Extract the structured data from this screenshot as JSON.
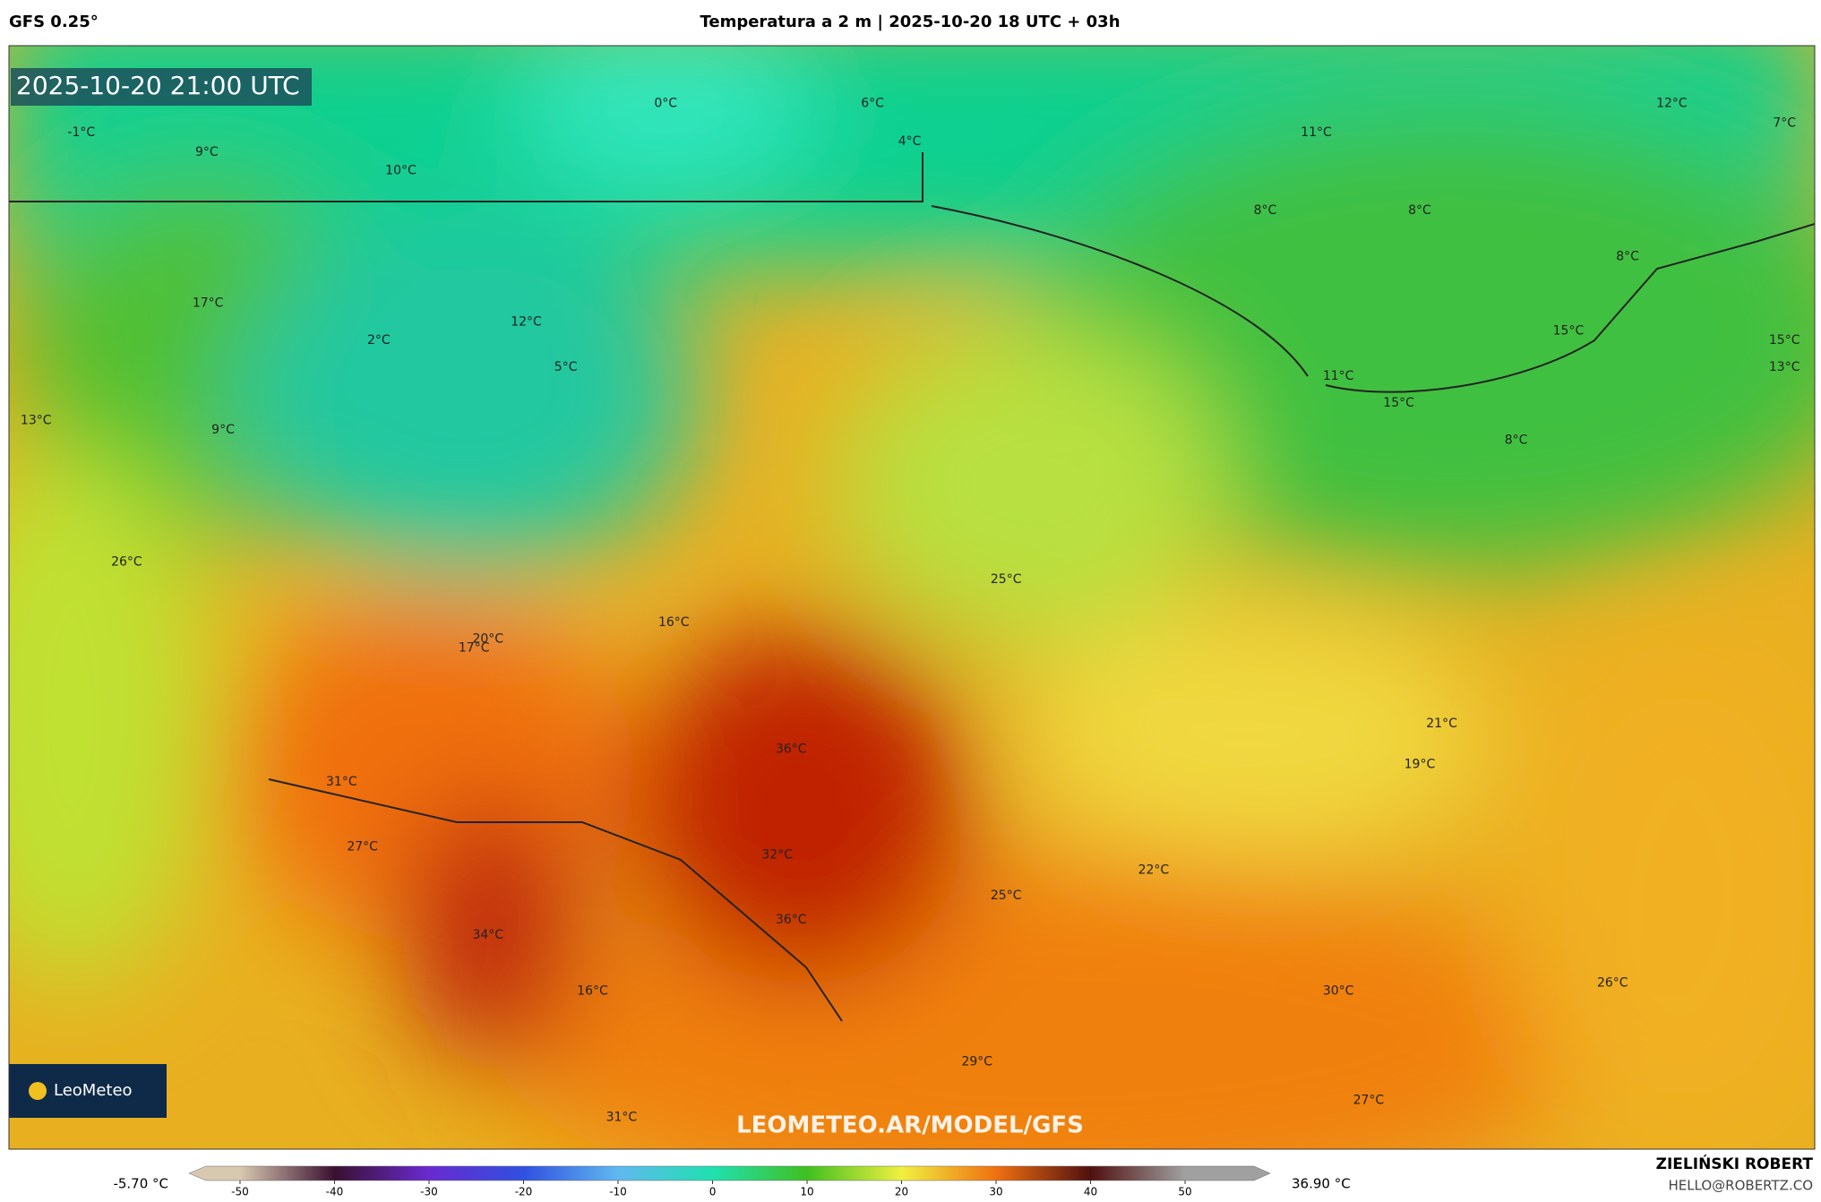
{
  "header": {
    "model": "GFS 0.25°",
    "title": "Temperatura a 2 m | 2025-10-20 18 UTC + 03h"
  },
  "map": {
    "timestamp": "2025-10-20 21:00 UTC",
    "watermark": "LEOMETEO.AR/MODEL/GFS",
    "logo": "LeoMeteo",
    "labels": [
      "-1°C",
      "9°C",
      "10°C",
      "0°C",
      "6°C",
      "4°C",
      "11°C",
      "12°C",
      "7°C",
      "8°C",
      "8°C",
      "8°C",
      "17°C",
      "2°C",
      "12°C",
      "5°C",
      "15°C",
      "15°C",
      "13°C",
      "11°C",
      "15°C",
      "8°C",
      "13°C",
      "9°C",
      "26°C",
      "25°C",
      "16°C",
      "20°C",
      "17°C",
      "21°C",
      "19°C",
      "36°C",
      "31°C",
      "27°C",
      "32°C",
      "22°C",
      "25°C",
      "36°C",
      "34°C",
      "16°C",
      "30°C",
      "26°C",
      "29°C",
      "27°C",
      "31°C"
    ]
  },
  "colorbar": {
    "min_label": "-5.70 °C",
    "max_label": "36.90 °C",
    "lim": [
      -55.4,
      59
    ],
    "ticks": [
      -50,
      -40,
      -30,
      -20,
      -10,
      0,
      10,
      20,
      30,
      40,
      50
    ],
    "colors": [
      "#d8c8b0",
      "#3a1030",
      "#6a2ad0",
      "#3050e0",
      "#60b8f0",
      "#20e0b0",
      "#40c020",
      "#f0f040",
      "#f07010",
      "#501010",
      "#a0a0a0"
    ]
  },
  "footer": {
    "author": "ZIELIŃSKI ROBERT",
    "email": "HELLO@ROBERTZ.CO"
  }
}
